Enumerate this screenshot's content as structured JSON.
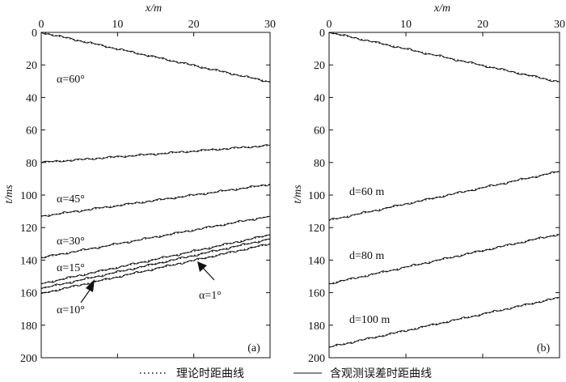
{
  "figure": {
    "legend": {
      "theory_label": "理论时距曲线",
      "observed_label": "含观测误差时距曲线",
      "theory_style": "dotted",
      "observed_style": "solid"
    },
    "colors": {
      "axis": "#111111",
      "curve": "#111111",
      "background": "#ffffff"
    }
  },
  "chart_data": [
    {
      "type": "line",
      "panel_label": "(a)",
      "xlabel": "x/m",
      "ylabel": "t/ms",
      "xlim": [
        0,
        30
      ],
      "ylim": [
        0,
        200
      ],
      "y_inverted": true,
      "x_ticks": [
        0,
        10,
        20,
        30
      ],
      "y_ticks": [
        0,
        20,
        40,
        60,
        80,
        100,
        120,
        140,
        160,
        180,
        200
      ],
      "series": [
        {
          "name": "direct",
          "label": "",
          "t0": 0,
          "t30": 30.5
        },
        {
          "name": "alpha=60",
          "label": "α=60°",
          "t0": 80,
          "t30": 69.5
        },
        {
          "name": "alpha=45",
          "label": "α=45°",
          "t0": 113,
          "t30": 93.5
        },
        {
          "name": "alpha=30",
          "label": "α=30°",
          "t0": 138.5,
          "t30": 113
        },
        {
          "name": "alpha=15",
          "label": "α=15°",
          "t0": 154.5,
          "t30": 124.5
        },
        {
          "name": "alpha=10",
          "label": "α=10°",
          "t0": 157.5,
          "t30": 127
        },
        {
          "name": "alpha=1",
          "label": "α=1°",
          "t0": 160.5,
          "t30": 130
        }
      ],
      "annotations": [
        {
          "label": "α=10°",
          "points_to": "alpha=10",
          "x": 6.6,
          "t": 151.5,
          "direction": "up-right"
        },
        {
          "label": "α=1°",
          "points_to": "alpha=1",
          "x": 19.3,
          "t": 140.5,
          "direction": "up-left"
        }
      ]
    },
    {
      "type": "line",
      "panel_label": "(b)",
      "xlabel": "x/m",
      "ylabel": "t/ms",
      "xlim": [
        0,
        30
      ],
      "ylim": [
        0,
        200
      ],
      "y_inverted": true,
      "x_ticks": [
        0,
        10,
        20,
        30
      ],
      "y_ticks": [
        0,
        20,
        40,
        60,
        80,
        100,
        120,
        140,
        160,
        180,
        200
      ],
      "series": [
        {
          "name": "direct",
          "label": "",
          "t0": 0,
          "t30": 30.5
        },
        {
          "name": "d=60",
          "label": "d=60 m",
          "t0": 115.5,
          "t30": 85.5
        },
        {
          "name": "d=80",
          "label": "d=80 m",
          "t0": 154.5,
          "t30": 124
        },
        {
          "name": "d=100",
          "label": "d=100 m",
          "t0": 193.5,
          "t30": 163
        }
      ]
    }
  ]
}
